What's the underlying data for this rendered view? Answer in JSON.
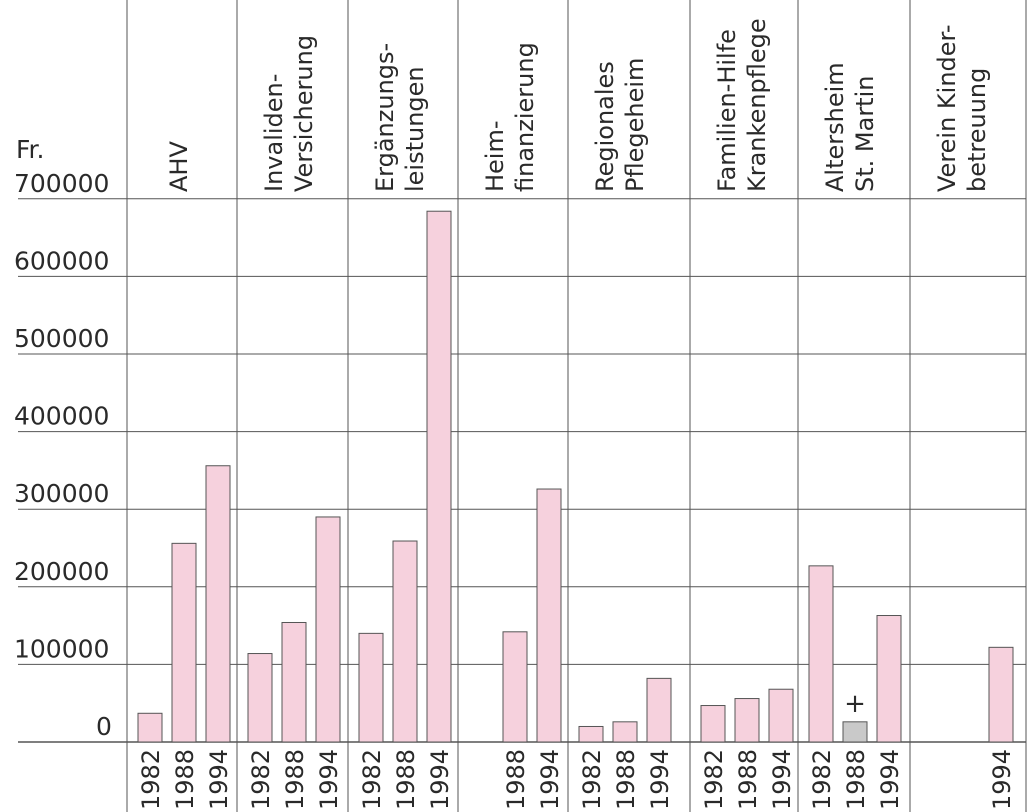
{
  "chart_data": {
    "type": "bar",
    "y_unit": "Fr.",
    "ylim": [
      0,
      700000
    ],
    "yticks": [
      0,
      100000,
      200000,
      300000,
      400000,
      500000,
      600000,
      700000
    ],
    "ytick_labels": [
      "0",
      "100000",
      "200000",
      "300000",
      "400000",
      "500000",
      "600000",
      "700000"
    ],
    "grid": true,
    "bar_color": "#f6d1dd",
    "marked_bar_color": "#c9c9c9",
    "groups": [
      {
        "label": [
          "AHV"
        ],
        "bars": [
          {
            "year": "1982",
            "value": 37000
          },
          {
            "year": "1988",
            "value": 256000
          },
          {
            "year": "1994",
            "value": 356000
          }
        ]
      },
      {
        "label": [
          "Invaliden-",
          "Versicherung"
        ],
        "bars": [
          {
            "year": "1982",
            "value": 114000
          },
          {
            "year": "1988",
            "value": 154000
          },
          {
            "year": "1994",
            "value": 290000
          }
        ]
      },
      {
        "label": [
          "Ergänzungs-",
          "leistungen"
        ],
        "bars": [
          {
            "year": "1982",
            "value": 140000
          },
          {
            "year": "1988",
            "value": 259000
          },
          {
            "year": "1994",
            "value": 684000
          }
        ]
      },
      {
        "label": [
          "Heim-",
          "finanzierung"
        ],
        "bars": [
          {
            "year": "1988",
            "value": 142000
          },
          {
            "year": "1994",
            "value": 326000
          }
        ]
      },
      {
        "label": [
          "Regionales",
          "Pflegeheim"
        ],
        "bars": [
          {
            "year": "1982",
            "value": 20000
          },
          {
            "year": "1988",
            "value": 26000
          },
          {
            "year": "1994",
            "value": 82000
          }
        ]
      },
      {
        "label": [
          "Familien-Hilfe",
          "Krankenpflege"
        ],
        "bars": [
          {
            "year": "1982",
            "value": 47000
          },
          {
            "year": "1988",
            "value": 56000
          },
          {
            "year": "1994",
            "value": 68000
          }
        ]
      },
      {
        "label": [
          "Altersheim",
          "St. Martin"
        ],
        "bars": [
          {
            "year": "1982",
            "value": 227000
          },
          {
            "year": "1988",
            "value": 26000,
            "marker": "+"
          },
          {
            "year": "1994",
            "value": 163000
          }
        ]
      },
      {
        "label": [
          "Verein Kinder-",
          "betreuung"
        ],
        "bars": [
          {
            "year": "1994",
            "value": 122000
          }
        ]
      }
    ]
  }
}
